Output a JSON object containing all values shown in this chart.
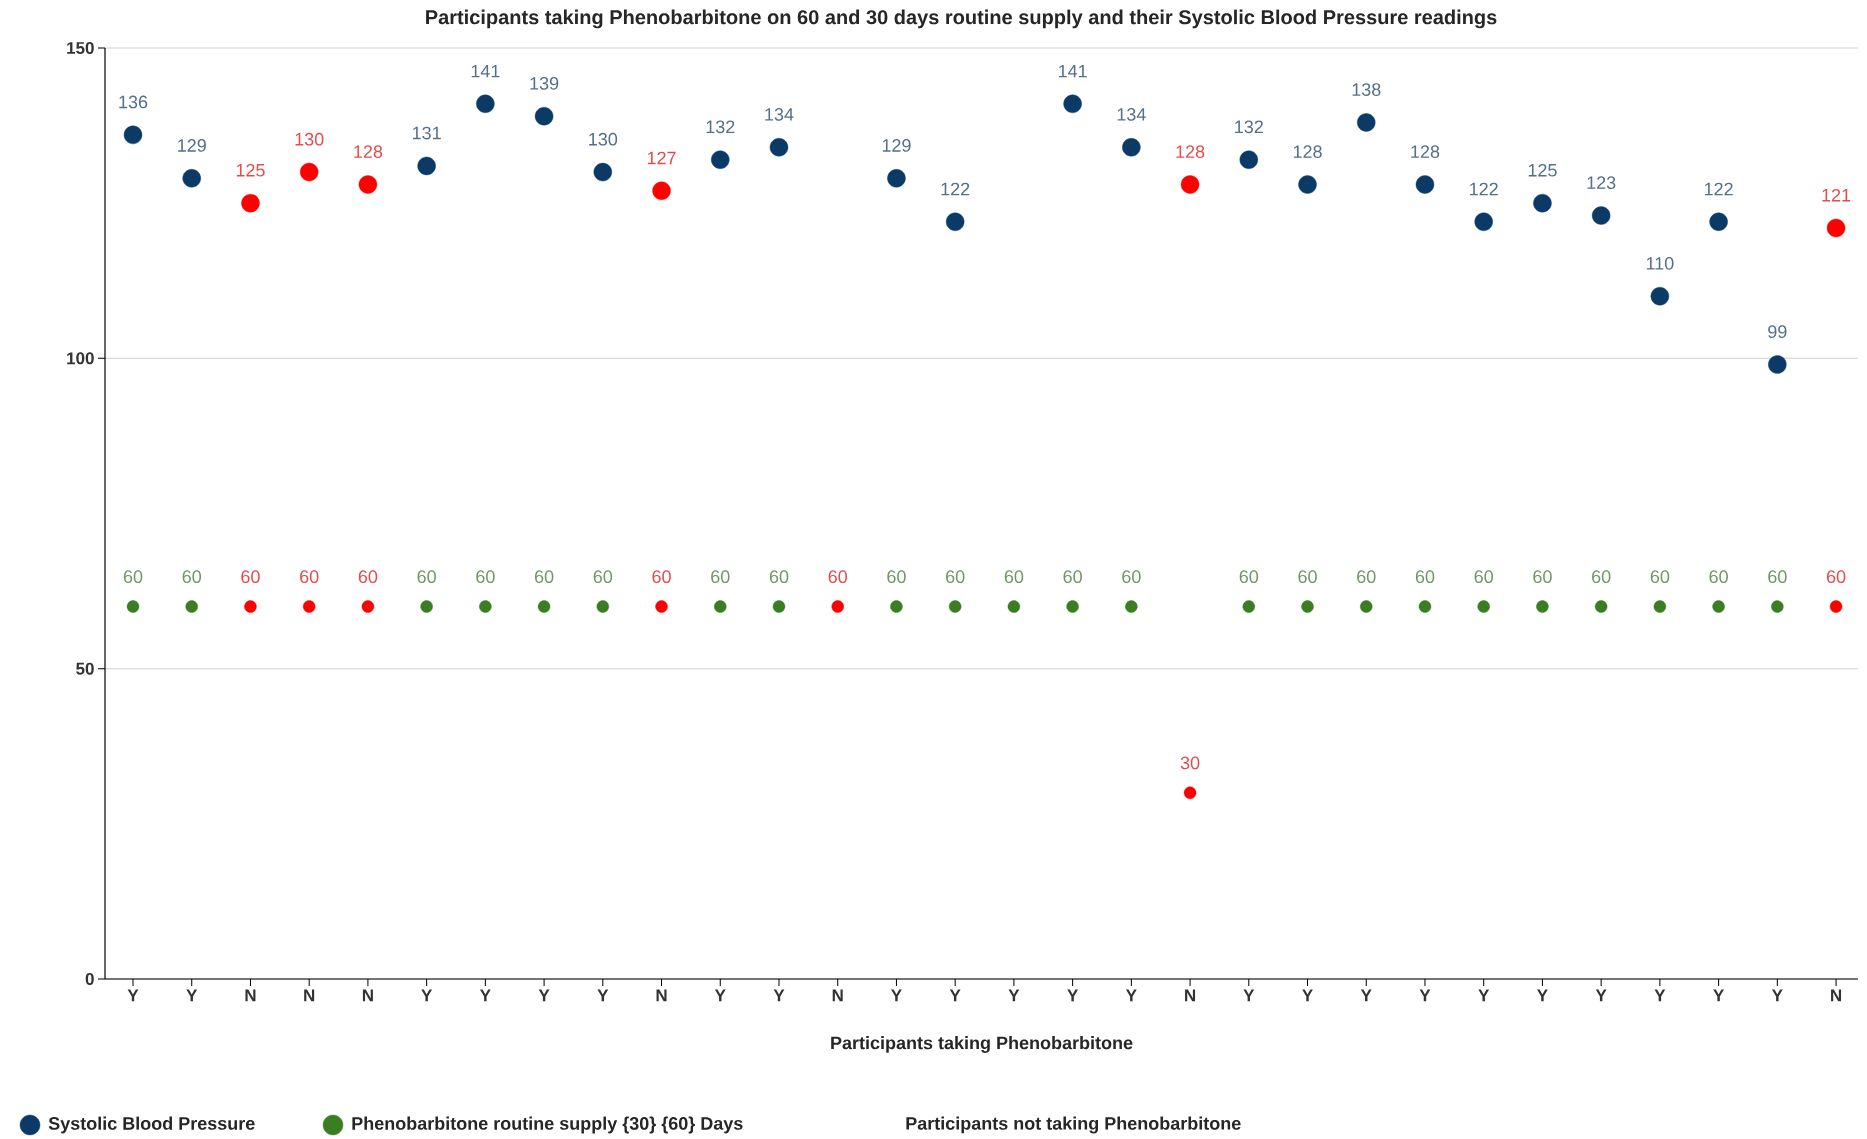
{
  "chart_data": {
    "type": "scatter",
    "title": "Participants taking Phenobarbitone on 60 and 30 days routine supply and their Systolic Blood Pressure readings",
    "xlabel": "Participants taking Phenobarbitone",
    "categories": [
      "Y",
      "Y",
      "N",
      "N",
      "N",
      "Y",
      "Y",
      "Y",
      "Y",
      "N",
      "Y",
      "Y",
      "N",
      "Y",
      "Y",
      "Y",
      "Y",
      "Y",
      "N",
      "Y",
      "Y",
      "Y",
      "Y",
      "Y",
      "Y",
      "Y",
      "Y",
      "Y",
      "Y",
      "N"
    ],
    "series": [
      {
        "name": "Systolic Blood Pressure",
        "color": "#0b3a66",
        "values": [
          136,
          129,
          125,
          130,
          128,
          131,
          141,
          139,
          130,
          127,
          132,
          134,
          null,
          129,
          122,
          null,
          141,
          134,
          128,
          132,
          128,
          138,
          128,
          122,
          125,
          123,
          110,
          122,
          99,
          121
        ],
        "colors": [
          "#0b3a66",
          "#0b3a66",
          "#ff0000",
          "#ff0000",
          "#ff0000",
          "#0b3a66",
          "#0b3a66",
          "#0b3a66",
          "#0b3a66",
          "#ff0000",
          "#0b3a66",
          "#0b3a66",
          "#ff0000",
          "#0b3a66",
          "#0b3a66",
          "#0b3a66",
          "#0b3a66",
          "#0b3a66",
          "#ff0000",
          "#0b3a66",
          "#0b3a66",
          "#0b3a66",
          "#0b3a66",
          "#0b3a66",
          "#0b3a66",
          "#0b3a66",
          "#0b3a66",
          "#0b3a66",
          "#0b3a66",
          "#ff0000"
        ]
      },
      {
        "name": "Phenobarbitone routine supply {30} {60} Days",
        "color": "#3a7d22",
        "values": [
          60,
          60,
          60,
          60,
          60,
          60,
          60,
          60,
          60,
          60,
          60,
          60,
          60,
          60,
          60,
          60,
          60,
          60,
          30,
          60,
          60,
          60,
          60,
          60,
          60,
          60,
          60,
          60,
          60,
          60
        ],
        "colors": [
          "#3a7d22",
          "#3a7d22",
          "#ff0000",
          "#ff0000",
          "#ff0000",
          "#3a7d22",
          "#3a7d22",
          "#3a7d22",
          "#3a7d22",
          "#ff0000",
          "#3a7d22",
          "#3a7d22",
          "#ff0000",
          "#3a7d22",
          "#3a7d22",
          "#3a7d22",
          "#3a7d22",
          "#3a7d22",
          "#ff0000",
          "#3a7d22",
          "#3a7d22",
          "#3a7d22",
          "#3a7d22",
          "#3a7d22",
          "#3a7d22",
          "#3a7d22",
          "#3a7d22",
          "#3a7d22",
          "#3a7d22",
          "#ff0000"
        ]
      }
    ],
    "annotations": [
      "Participants not taking Phenobarbitone"
    ],
    "ylim": [
      0,
      150
    ],
    "yticks": [
      0,
      50,
      100,
      150
    ],
    "grid": "y",
    "legend": "bottom",
    "marker": "circle",
    "data_labels": true
  }
}
